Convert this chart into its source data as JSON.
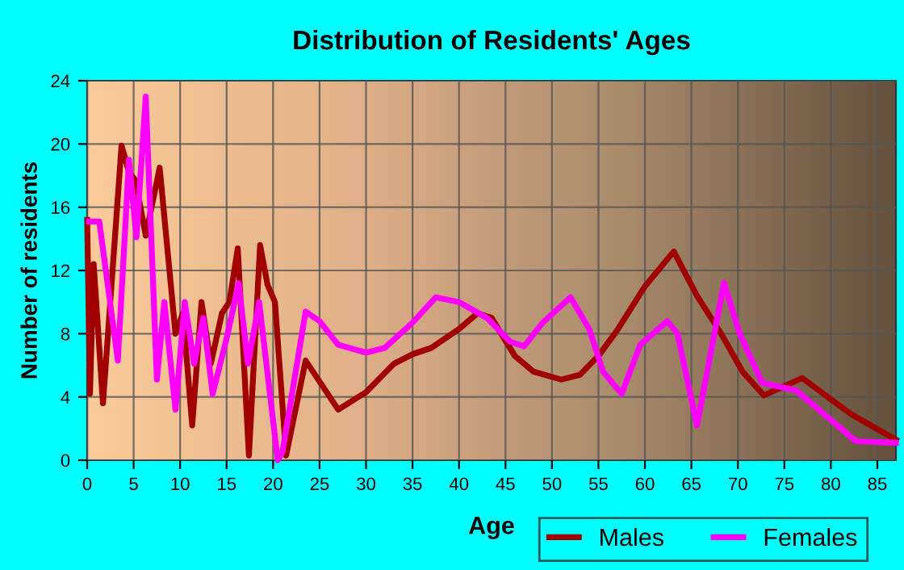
{
  "chart_data": {
    "type": "line",
    "title": "Distribution of Residents' Ages",
    "xlabel": "Age",
    "ylabel": "Number of residents",
    "xlim": [
      0,
      87
    ],
    "xticks": [
      0,
      5,
      10,
      15,
      20,
      25,
      30,
      35,
      40,
      45,
      50,
      55,
      60,
      65,
      70,
      75,
      80,
      85
    ],
    "ylim": [
      0,
      24
    ],
    "yticks": [
      0,
      4,
      8,
      12,
      16,
      20,
      24
    ],
    "grid": true,
    "legend": "bottom right",
    "line_style": "solid",
    "marker": "none",
    "series": [
      {
        "name": "Males",
        "color": "#a00000",
        "x": [
          0,
          0.3,
          0.7,
          1.7,
          3.7,
          4.5,
          5.2,
          6.3,
          7.8,
          9.5,
          10.3,
          11.3,
          12.3,
          13.3,
          14.5,
          15.3,
          16.2,
          17.4,
          18.6,
          19.4,
          20.2,
          21.4,
          23.5,
          27,
          30,
          33,
          35,
          37,
          40,
          42,
          43.5,
          46,
          48,
          51,
          53,
          55,
          57,
          60,
          63.1,
          65.6,
          68.2,
          70.5,
          72.8,
          76.9,
          82.2,
          87
        ],
        "values": [
          15.2,
          4.2,
          12.4,
          3.6,
          19.9,
          18.2,
          17.7,
          14.2,
          18.5,
          8,
          9.3,
          2.2,
          10,
          6.1,
          9.3,
          10,
          13.4,
          0.3,
          13.6,
          11.1,
          10,
          0.3,
          6.3,
          3.2,
          4.3,
          6.1,
          6.7,
          7.1,
          8.3,
          9.3,
          9,
          6.6,
          5.6,
          5.1,
          5.4,
          6.6,
          8.2,
          11,
          13.2,
          10.4,
          8,
          5.6,
          4.1,
          5.2,
          2.9,
          1.3
        ]
      },
      {
        "name": "Females",
        "color": "#ff00ff",
        "x": [
          0.2,
          1.3,
          3.3,
          4.5,
          5.3,
          6.3,
          7.5,
          8.3,
          9.5,
          10.5,
          11.5,
          12.5,
          13.5,
          15,
          16.3,
          17.3,
          18.5,
          20.5,
          21,
          23.5,
          25,
          27,
          30,
          32,
          35,
          37.5,
          40,
          43,
          45.5,
          47,
          49,
          52,
          54,
          55.5,
          57.5,
          59.5,
          62.4,
          63.5,
          65.6,
          68.5,
          70.2,
          72.6,
          76.3,
          82.7,
          87
        ],
        "values": [
          15.1,
          15.1,
          6.3,
          19,
          14.1,
          23,
          5.1,
          10,
          3.2,
          10,
          6.1,
          9,
          4.2,
          7.7,
          11.2,
          6.1,
          10,
          0,
          0.5,
          9.4,
          8.8,
          7.3,
          6.8,
          7.1,
          8.7,
          10.3,
          10,
          9,
          7.5,
          7.2,
          8.7,
          10.3,
          8.3,
          5.6,
          4.2,
          7.3,
          8.8,
          8,
          2.2,
          11.2,
          8,
          4.9,
          4.4,
          1.2,
          1.1
        ]
      }
    ]
  }
}
